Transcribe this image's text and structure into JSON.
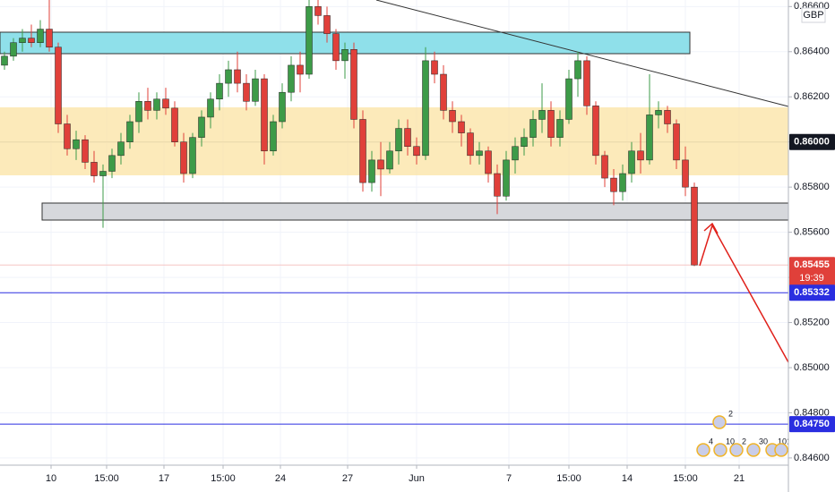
{
  "chart_data": {
    "type": "candlestick",
    "currency": "GBP",
    "up_color": "#3d9b48",
    "down_color": "#e0403a",
    "open": [
      0.8634,
      0.8638,
      0.8644,
      0.8646,
      0.8644,
      0.865,
      0.8642,
      0.8608,
      0.8597,
      0.8601,
      0.8591,
      0.8585,
      0.8587,
      0.8594,
      0.86,
      0.8609,
      0.8618,
      0.8614,
      0.8619,
      0.8615,
      0.86,
      0.8586,
      0.8602,
      0.8611,
      0.8619,
      0.8626,
      0.8632,
      0.8626,
      0.8618,
      0.8628,
      0.8596,
      0.8609,
      0.8622,
      0.8634,
      0.863,
      0.866,
      0.8656,
      0.8648,
      0.8636,
      0.8641,
      0.861,
      0.8582,
      0.8592,
      0.8588,
      0.8596,
      0.8606,
      0.8598,
      0.8594,
      0.8636,
      0.863,
      0.8614,
      0.8609,
      0.8604,
      0.8594,
      0.8596,
      0.8586,
      0.8576,
      0.8592,
      0.8598,
      0.8602,
      0.861,
      0.8614,
      0.8602,
      0.861,
      0.8628,
      0.8636,
      0.8616,
      0.8594,
      0.8584,
      0.8578,
      0.8586,
      0.8596,
      0.8592,
      0.8612,
      0.8614,
      0.8608,
      0.8592,
      0.858
    ],
    "high": [
      0.864,
      0.8646,
      0.865,
      0.8652,
      0.8654,
      0.8663,
      0.8644,
      0.8612,
      0.8605,
      0.8603,
      0.8596,
      0.859,
      0.8597,
      0.8604,
      0.8612,
      0.8622,
      0.8624,
      0.8622,
      0.8624,
      0.8618,
      0.8604,
      0.8604,
      0.8614,
      0.8622,
      0.863,
      0.8636,
      0.864,
      0.863,
      0.8632,
      0.863,
      0.8612,
      0.8626,
      0.8638,
      0.864,
      0.8664,
      0.8664,
      0.866,
      0.865,
      0.8644,
      0.8644,
      0.8614,
      0.8596,
      0.86,
      0.86,
      0.861,
      0.861,
      0.8602,
      0.8642,
      0.864,
      0.8634,
      0.8618,
      0.8612,
      0.8606,
      0.86,
      0.8598,
      0.859,
      0.8596,
      0.8602,
      0.8606,
      0.8614,
      0.8626,
      0.8618,
      0.8614,
      0.8632,
      0.864,
      0.8638,
      0.8618,
      0.8596,
      0.8588,
      0.859,
      0.86,
      0.8604,
      0.863,
      0.8618,
      0.8616,
      0.861,
      0.8598,
      0.8582
    ],
    "low": [
      0.8632,
      0.8636,
      0.864,
      0.8642,
      0.8642,
      0.864,
      0.8604,
      0.8594,
      0.8592,
      0.8588,
      0.8582,
      0.8562,
      0.8584,
      0.859,
      0.8597,
      0.8604,
      0.861,
      0.861,
      0.8612,
      0.8598,
      0.8582,
      0.8584,
      0.8598,
      0.8606,
      0.8614,
      0.862,
      0.8622,
      0.8614,
      0.8616,
      0.859,
      0.8594,
      0.8606,
      0.8618,
      0.8622,
      0.8628,
      0.8652,
      0.8644,
      0.8632,
      0.8628,
      0.8606,
      0.8578,
      0.8578,
      0.8576,
      0.8586,
      0.859,
      0.8594,
      0.859,
      0.8592,
      0.8626,
      0.861,
      0.8604,
      0.8598,
      0.859,
      0.859,
      0.8582,
      0.8568,
      0.8574,
      0.8586,
      0.8594,
      0.8598,
      0.8604,
      0.8598,
      0.8598,
      0.8608,
      0.862,
      0.8612,
      0.859,
      0.858,
      0.8572,
      0.8574,
      0.8582,
      0.8586,
      0.859,
      0.8606,
      0.8604,
      0.8588,
      0.8576,
      0.8545
    ],
    "close": [
      0.8638,
      0.8644,
      0.8646,
      0.8644,
      0.865,
      0.8642,
      0.8608,
      0.8597,
      0.8601,
      0.8591,
      0.8585,
      0.8587,
      0.8594,
      0.86,
      0.8609,
      0.8618,
      0.8614,
      0.8619,
      0.8615,
      0.86,
      0.8586,
      0.8602,
      0.8611,
      0.8619,
      0.8626,
      0.8632,
      0.8626,
      0.8618,
      0.8628,
      0.8596,
      0.8609,
      0.8622,
      0.8634,
      0.863,
      0.866,
      0.8656,
      0.8648,
      0.8636,
      0.8641,
      0.861,
      0.8582,
      0.8592,
      0.8588,
      0.8596,
      0.8606,
      0.8598,
      0.8594,
      0.8636,
      0.863,
      0.8614,
      0.8609,
      0.8604,
      0.8594,
      0.8596,
      0.8586,
      0.8576,
      0.8592,
      0.8598,
      0.8602,
      0.861,
      0.8614,
      0.8602,
      0.861,
      0.8628,
      0.8636,
      0.8616,
      0.8594,
      0.8584,
      0.8578,
      0.8586,
      0.8596,
      0.8592,
      0.8612,
      0.8614,
      0.8608,
      0.8592,
      0.858,
      0.85455
    ],
    "xlim": [
      -0.5,
      87.5
    ],
    "xticks": [
      {
        "value": 5.2,
        "label": "10"
      },
      {
        "value": 11.4,
        "label": "15:00"
      },
      {
        "value": 17.8,
        "label": "17"
      },
      {
        "value": 24.4,
        "label": "15:00"
      },
      {
        "value": 30.8,
        "label": "24"
      },
      {
        "value": 38.3,
        "label": "27"
      },
      {
        "value": 46,
        "label": "Jun"
      },
      {
        "value": 56.3,
        "label": "7"
      },
      {
        "value": 63,
        "label": "15:00"
      },
      {
        "value": 69.5,
        "label": "14"
      },
      {
        "value": 76,
        "label": "15:00"
      },
      {
        "value": 82,
        "label": "21"
      }
    ],
    "ylim": [
      0.84568,
      0.86629
    ],
    "yticks": [
      {
        "value": 0.846,
        "label": "0.84600"
      },
      {
        "value": 0.848,
        "label": "0.84800"
      },
      {
        "value": 0.85,
        "label": "0.85000"
      },
      {
        "value": 0.852,
        "label": "0.85200"
      },
      {
        "value": 0.854,
        "label": "0.85400"
      },
      {
        "value": 0.856,
        "label": "0.85600"
      },
      {
        "value": 0.858,
        "label": "0.85800"
      },
      {
        "value": 0.86,
        "label": "0.86000"
      },
      {
        "value": 0.862,
        "label": "0.86200"
      },
      {
        "value": 0.864,
        "label": "0.86400"
      },
      {
        "value": 0.866,
        "label": "0.86600"
      }
    ],
    "price_lines": [
      {
        "value": 0.86,
        "label": "0.86000",
        "color": "#131722",
        "line_color": "#b2b5be"
      },
      {
        "value": 0.85455,
        "label": "0.85455",
        "color": "#e0403a",
        "line_color": "#f5c6c4",
        "countdown": "19:39"
      },
      {
        "value": 0.85332,
        "label": "0.85332",
        "color": "#2a2ee0",
        "line_color": "#2a2ee0"
      },
      {
        "value": 0.8475,
        "label": "0.84750",
        "color": "#2a2ee0",
        "line_color": "#2a2ee0"
      }
    ],
    "event_labels": [
      "2",
      "4",
      "10",
      "2",
      "30",
      "10",
      "10"
    ]
  }
}
